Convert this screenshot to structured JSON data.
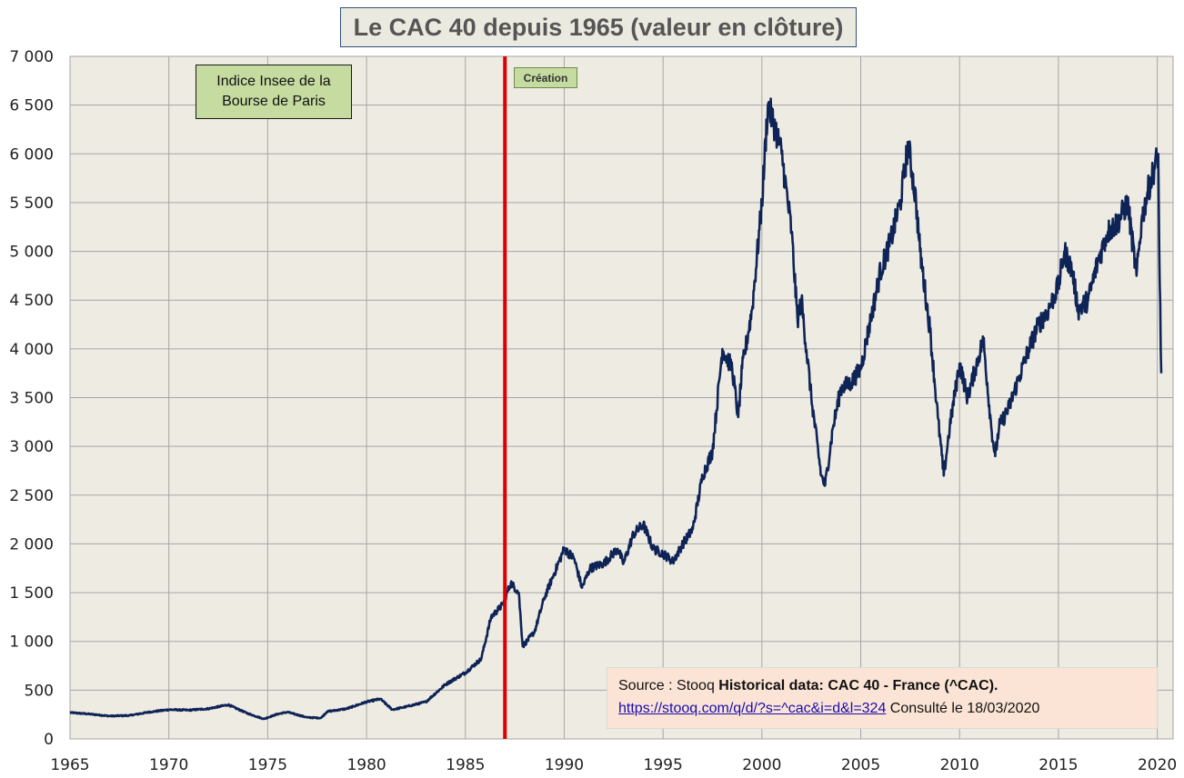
{
  "title": "Le CAC 40 depuis 1965 (valeur en clôture)",
  "annotations": {
    "insee": "Indice Insee de la\nBourse de Paris",
    "creation": "Création"
  },
  "source": {
    "prefix": "Source : Stooq ",
    "bold": "Historical data: CAC 40 - France (^CAC).",
    "link": "https://stooq.com/q/d/?s=^cac&i=d&l=324",
    "suffix": " Consulté le 18/03/2020"
  },
  "colors": {
    "plot_bg": "#eeebe3",
    "series": "#0f2456",
    "creation_line": "#dd0000",
    "grid": "#a6a6a6"
  },
  "chart_data": {
    "type": "line",
    "title": "Le CAC 40 depuis 1965 (valeur en clôture)",
    "xlabel": "",
    "ylabel": "",
    "xlim": [
      1965,
      2020.8
    ],
    "ylim": [
      0,
      7000
    ],
    "grid": true,
    "x_ticks": [
      "1965",
      "1970",
      "1975",
      "1980",
      "1985",
      "1990",
      "1995",
      "2000",
      "2005",
      "2010",
      "2015",
      "2020"
    ],
    "y_ticks": [
      "0",
      "500",
      "1 000",
      "1 500",
      "2 000",
      "2 500",
      "3 000",
      "3 500",
      "4 000",
      "4 500",
      "5 000",
      "5 500",
      "6 000",
      "6 500",
      "7 000"
    ],
    "creation_year": 1987,
    "series": [
      {
        "name": "",
        "x": [
          1965,
          1966,
          1967,
          1968,
          1969,
          1970,
          1971,
          1972,
          1973,
          1974,
          1974.8,
          1975.5,
          1976,
          1977,
          1977.7,
          1978,
          1979,
          1980,
          1980.7,
          1981.3,
          1982,
          1983,
          1984,
          1985,
          1985.8,
          1986.3,
          1986.9,
          1987.3,
          1987.7,
          1987.9,
          1988.5,
          1989,
          1989.5,
          1990,
          1990.5,
          1990.9,
          1991.3,
          1992,
          1992.7,
          1993,
          1993.5,
          1994,
          1994.5,
          1995,
          1995.5,
          1996,
          1996.5,
          1997,
          1997.5,
          1998,
          1998.5,
          1998.8,
          1999,
          1999.5,
          2000,
          2000.3,
          2000.7,
          2001,
          2001.5,
          2001.8,
          2002,
          2002.5,
          2003,
          2003.2,
          2003.6,
          2004,
          2004.5,
          2005,
          2005.5,
          2006,
          2006.5,
          2007,
          2007.4,
          2007.8,
          2008,
          2008.5,
          2008.9,
          2009.2,
          2009.5,
          2010,
          2010.4,
          2010.8,
          2011.2,
          2011.6,
          2011.8,
          2012,
          2012.5,
          2013,
          2013.5,
          2014,
          2014.5,
          2015,
          2015.3,
          2015.7,
          2016,
          2016.5,
          2017,
          2017.5,
          2018,
          2018.5,
          2018.95,
          2019.2,
          2019.5,
          2020.05,
          2020.1,
          2020.2
        ],
        "values": [
          270,
          255,
          235,
          240,
          275,
          300,
          295,
          310,
          350,
          260,
          205,
          255,
          275,
          220,
          215,
          280,
          310,
          380,
          410,
          300,
          330,
          380,
          560,
          680,
          820,
          1250,
          1380,
          1600,
          1500,
          950,
          1100,
          1450,
          1700,
          1950,
          1850,
          1550,
          1750,
          1800,
          1950,
          1800,
          2100,
          2200,
          1950,
          1900,
          1820,
          2000,
          2150,
          2700,
          2950,
          4000,
          3800,
          3300,
          3800,
          4400,
          5500,
          6500,
          6250,
          6000,
          5200,
          4300,
          4500,
          3500,
          2700,
          2600,
          3200,
          3600,
          3650,
          3800,
          4300,
          4800,
          5100,
          5500,
          6100,
          5500,
          5000,
          4200,
          3300,
          2700,
          3200,
          3850,
          3500,
          3800,
          4100,
          3200,
          2900,
          3200,
          3400,
          3700,
          4000,
          4250,
          4400,
          4650,
          5000,
          4800,
          4400,
          4500,
          4900,
          5200,
          5300,
          5500,
          4750,
          5300,
          5600,
          6000,
          5000,
          3750
        ]
      }
    ]
  }
}
